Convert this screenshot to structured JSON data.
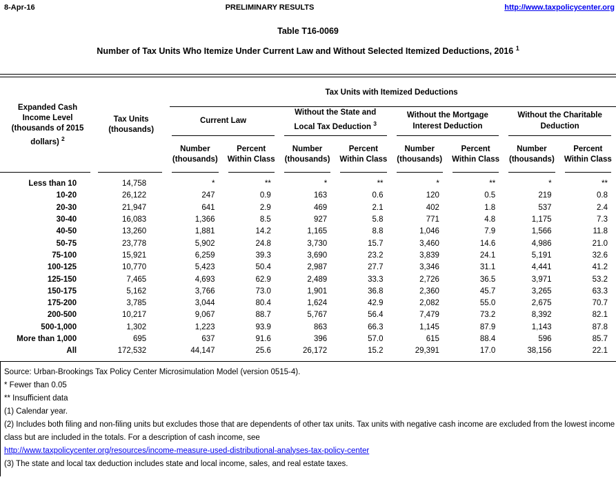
{
  "header": {
    "date": "8-Apr-16",
    "center_label": "PRELIMINARY RESULTS",
    "link": "http://www.taxpolicycenter.org"
  },
  "titles": {
    "table_number": "Table T16-0069",
    "main": "Number of Tax Units Who Itemize Under Current Law and Without Selected Itemized Deductions, 2016",
    "main_sup": "1"
  },
  "colors": {
    "link_blue": "#0000EE",
    "text": "#000000",
    "rule": "#000000"
  },
  "table": {
    "col1_header": "Expanded Cash Income Level (thousands of 2015 dollars)",
    "col1_sup": "2",
    "col2_header": "Tax Units (thousands)",
    "span_header": "Tax Units with Itemized Deductions",
    "groups": [
      {
        "label": "Current Law",
        "sup": ""
      },
      {
        "label": "Without the State and Local Tax Deduction",
        "sup": "3"
      },
      {
        "label": "Without the Mortgage Interest Deduction",
        "sup": ""
      },
      {
        "label": "Without the Charitable Deduction",
        "sup": ""
      }
    ],
    "sub_headers": {
      "number": [
        "Number",
        "(thousands)"
      ],
      "percent": [
        "Percent",
        "Within Class"
      ]
    },
    "rows": [
      {
        "label": "Less than 10",
        "cells": [
          "14,758",
          "*",
          "**",
          "*",
          "**",
          "*",
          "**",
          "*",
          "**"
        ]
      },
      {
        "label": "10-20",
        "cells": [
          "26,122",
          "247",
          "0.9",
          "163",
          "0.6",
          "120",
          "0.5",
          "219",
          "0.8"
        ]
      },
      {
        "label": "20-30",
        "cells": [
          "21,947",
          "641",
          "2.9",
          "469",
          "2.1",
          "402",
          "1.8",
          "537",
          "2.4"
        ]
      },
      {
        "label": "30-40",
        "cells": [
          "16,083",
          "1,366",
          "8.5",
          "927",
          "5.8",
          "771",
          "4.8",
          "1,175",
          "7.3"
        ]
      },
      {
        "label": "40-50",
        "cells": [
          "13,260",
          "1,881",
          "14.2",
          "1,165",
          "8.8",
          "1,046",
          "7.9",
          "1,566",
          "11.8"
        ]
      },
      {
        "label": "50-75",
        "cells": [
          "23,778",
          "5,902",
          "24.8",
          "3,730",
          "15.7",
          "3,460",
          "14.6",
          "4,986",
          "21.0"
        ]
      },
      {
        "label": "75-100",
        "cells": [
          "15,921",
          "6,259",
          "39.3",
          "3,690",
          "23.2",
          "3,839",
          "24.1",
          "5,191",
          "32.6"
        ]
      },
      {
        "label": "100-125",
        "cells": [
          "10,770",
          "5,423",
          "50.4",
          "2,987",
          "27.7",
          "3,346",
          "31.1",
          "4,441",
          "41.2"
        ]
      },
      {
        "label": "125-150",
        "cells": [
          "7,465",
          "4,693",
          "62.9",
          "2,489",
          "33.3",
          "2,726",
          "36.5",
          "3,971",
          "53.2"
        ]
      },
      {
        "label": "150-175",
        "cells": [
          "5,162",
          "3,766",
          "73.0",
          "1,901",
          "36.8",
          "2,360",
          "45.7",
          "3,265",
          "63.3"
        ]
      },
      {
        "label": "175-200",
        "cells": [
          "3,785",
          "3,044",
          "80.4",
          "1,624",
          "42.9",
          "2,082",
          "55.0",
          "2,675",
          "70.7"
        ]
      },
      {
        "label": "200-500",
        "cells": [
          "10,217",
          "9,067",
          "88.7",
          "5,767",
          "56.4",
          "7,479",
          "73.2",
          "8,392",
          "82.1"
        ]
      },
      {
        "label": "500-1,000",
        "cells": [
          "1,302",
          "1,223",
          "93.9",
          "863",
          "66.3",
          "1,145",
          "87.9",
          "1,143",
          "87.8"
        ]
      },
      {
        "label": "More than 1,000",
        "cells": [
          "695",
          "637",
          "91.6",
          "396",
          "57.0",
          "615",
          "88.4",
          "596",
          "85.7"
        ]
      },
      {
        "label": "All",
        "cells": [
          "172,532",
          "44,147",
          "25.6",
          "26,172",
          "15.2",
          "29,391",
          "17.0",
          "38,156",
          "22.1"
        ]
      }
    ]
  },
  "notes": {
    "source": "Source: Urban-Brookings Tax Policy Center Microsimulation Model (version 0515-4).",
    "star": "* Fewer than 0.05",
    "double_star": "** Insufficient data",
    "n1": "(1) Calendar year.",
    "n2": "(2) Includes both filing and non-filing units but excludes those that are dependents of other tax units. Tax units with negative cash income are excluded from the lowest income class but are included in the totals. For a description of cash income, see",
    "link": "http://www.taxpolicycenter.org/resources/income-measure-used-distributional-analyses-tax-policy-center",
    "n3": "(3) The state and local tax deduction includes state and local income, sales, and real estate taxes."
  }
}
